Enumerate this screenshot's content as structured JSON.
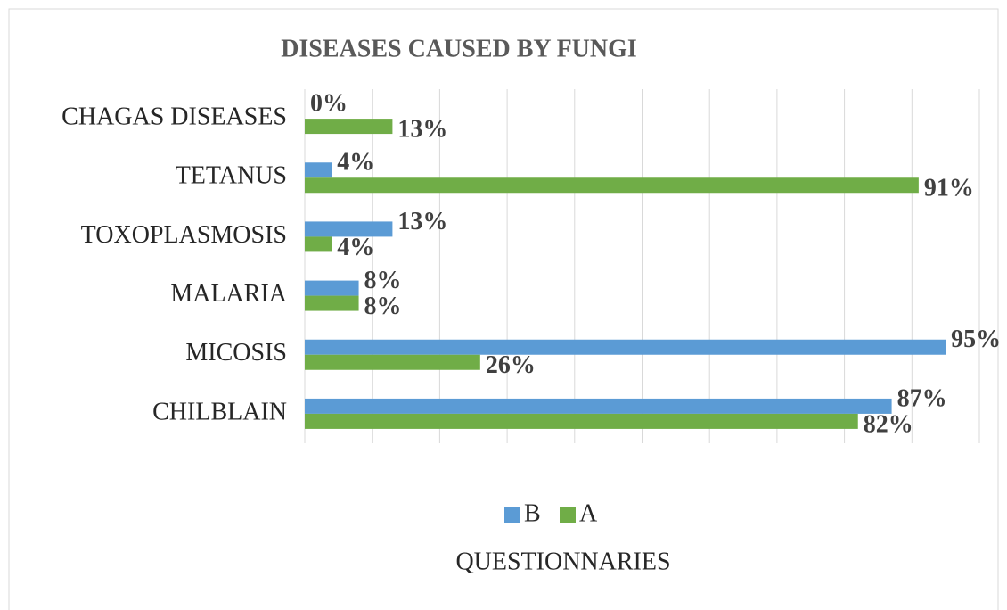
{
  "chart_data": {
    "type": "bar",
    "orientation": "horizontal",
    "title": "DISEASES CAUSED BY FUNGI",
    "categories": [
      "CHAGAS DISEASES",
      "TETANUS",
      "TOXOPLASMOSIS",
      "MALARIA",
      "MICOSIS",
      "CHILBLAIN"
    ],
    "series": [
      {
        "name": "B",
        "color": "#5b9bd5",
        "values": [
          0,
          4,
          13,
          8,
          95,
          87
        ],
        "value_labels": [
          "0%",
          "4%",
          "13%",
          "8%",
          "95%",
          "87%"
        ]
      },
      {
        "name": "A",
        "color": "#70ad47",
        "values": [
          13,
          91,
          4,
          8,
          26,
          82
        ],
        "value_labels": [
          "13%",
          "91%",
          "4%",
          "8%",
          "26%",
          "82%"
        ]
      }
    ],
    "xlabel": "QUESTIONNARIES",
    "xlim": [
      0,
      100
    ],
    "xticks": [
      0,
      10,
      20,
      30,
      40,
      50,
      60,
      70,
      80,
      90,
      100
    ],
    "grid": true,
    "legend": "bottom"
  }
}
